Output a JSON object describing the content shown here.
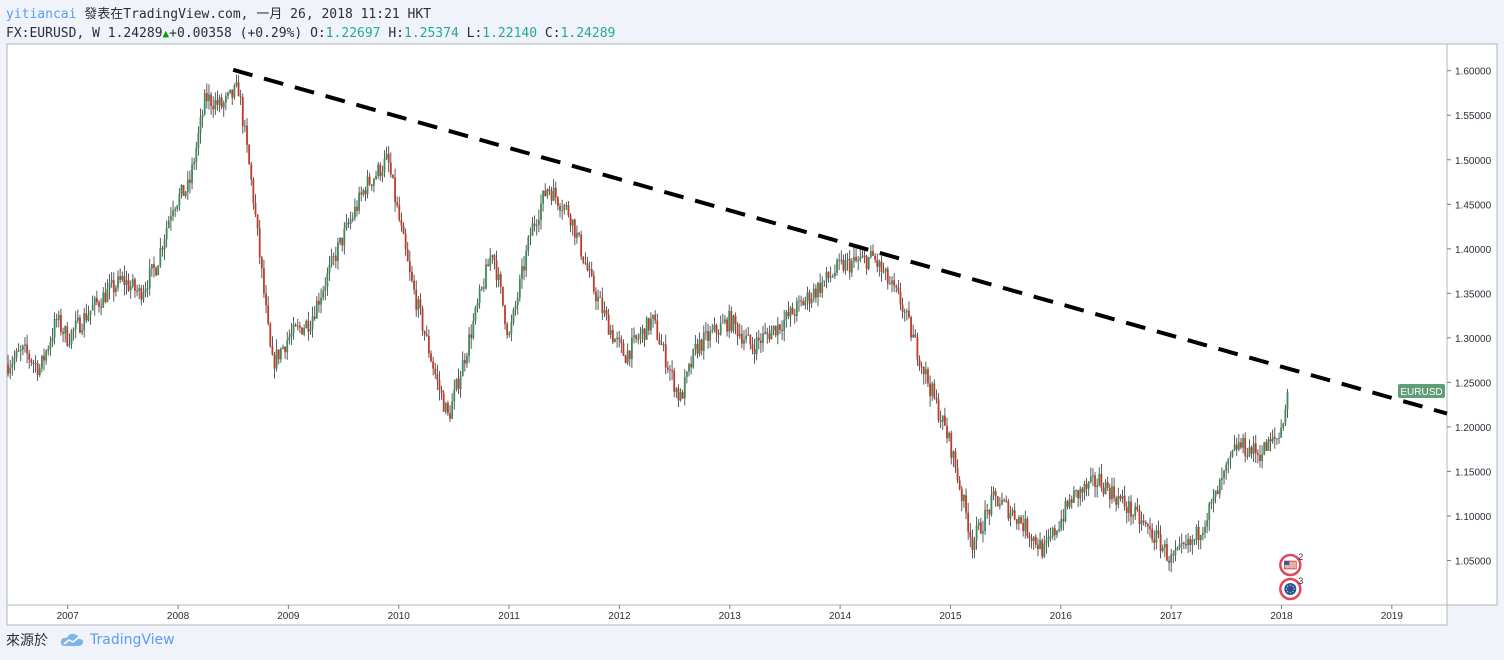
{
  "header": {
    "author": "yitiancai",
    "published": "發表在TradingView.com, 一月 26, 2018 11:21 HKT",
    "symbol": "FX:EURUSD, W",
    "last": "1.24289",
    "change": "+0.00358 (+0.29%)",
    "o_label": "O:",
    "o_value": "1.22697",
    "h_label": "H:",
    "h_value": "1.25374",
    "l_label": "L:",
    "l_value": "1.22140",
    "c_label": "C:",
    "c_value": "1.24289"
  },
  "footer": {
    "source_label": "來源於",
    "brand": "TradingView"
  },
  "colors": {
    "up": "#3d8a5a",
    "down": "#c0392b",
    "trend": "#000000",
    "badge": "#5f9e77"
  },
  "chart_data": {
    "type": "candlestick",
    "symbol_badge": "EURUSD",
    "x_range": [
      2006.45,
      2019.5
    ],
    "ylim": [
      1.0,
      1.63
    ],
    "y_ticks": [
      "1.60000",
      "1.55000",
      "1.50000",
      "1.45000",
      "1.40000",
      "1.35000",
      "1.30000",
      "1.25000",
      "1.20000",
      "1.15000",
      "1.10000",
      "1.05000"
    ],
    "x_ticks": [
      "2007",
      "2008",
      "2009",
      "2010",
      "2011",
      "2012",
      "2013",
      "2014",
      "2015",
      "2016",
      "2017",
      "2018",
      "2019"
    ],
    "price_path": [
      [
        2006.45,
        1.27
      ],
      [
        2006.6,
        1.285
      ],
      [
        2006.75,
        1.265
      ],
      [
        2006.9,
        1.32
      ],
      [
        2007.0,
        1.3
      ],
      [
        2007.2,
        1.33
      ],
      [
        2007.35,
        1.35
      ],
      [
        2007.5,
        1.365
      ],
      [
        2007.65,
        1.35
      ],
      [
        2007.8,
        1.38
      ],
      [
        2007.95,
        1.45
      ],
      [
        2008.1,
        1.47
      ],
      [
        2008.25,
        1.57
      ],
      [
        2008.4,
        1.56
      ],
      [
        2008.55,
        1.58
      ],
      [
        2008.68,
        1.46
      ],
      [
        2008.85,
        1.27
      ],
      [
        2009.0,
        1.3
      ],
      [
        2009.2,
        1.32
      ],
      [
        2009.45,
        1.4
      ],
      [
        2009.7,
        1.47
      ],
      [
        2009.9,
        1.5
      ],
      [
        2010.1,
        1.37
      ],
      [
        2010.35,
        1.25
      ],
      [
        2010.45,
        1.21
      ],
      [
        2010.6,
        1.28
      ],
      [
        2010.85,
        1.4
      ],
      [
        2011.0,
        1.3
      ],
      [
        2011.2,
        1.42
      ],
      [
        2011.35,
        1.47
      ],
      [
        2011.55,
        1.44
      ],
      [
        2011.75,
        1.36
      ],
      [
        2011.95,
        1.3
      ],
      [
        2012.05,
        1.28
      ],
      [
        2012.3,
        1.32
      ],
      [
        2012.55,
        1.23
      ],
      [
        2012.7,
        1.29
      ],
      [
        2013.0,
        1.32
      ],
      [
        2013.2,
        1.29
      ],
      [
        2013.5,
        1.32
      ],
      [
        2013.75,
        1.35
      ],
      [
        2014.0,
        1.38
      ],
      [
        2014.3,
        1.39
      ],
      [
        2014.55,
        1.34
      ],
      [
        2014.8,
        1.25
      ],
      [
        2015.0,
        1.18
      ],
      [
        2015.2,
        1.07
      ],
      [
        2015.4,
        1.12
      ],
      [
        2015.6,
        1.1
      ],
      [
        2015.85,
        1.06
      ],
      [
        2016.1,
        1.12
      ],
      [
        2016.35,
        1.14
      ],
      [
        2016.6,
        1.11
      ],
      [
        2016.9,
        1.07
      ],
      [
        2017.0,
        1.05
      ],
      [
        2017.2,
        1.07
      ],
      [
        2017.4,
        1.12
      ],
      [
        2017.6,
        1.18
      ],
      [
        2017.8,
        1.17
      ],
      [
        2017.98,
        1.19
      ],
      [
        2018.07,
        1.243
      ]
    ],
    "trendline": {
      "start": [
        2008.5,
        1.601
      ],
      "end": [
        2019.5,
        1.215
      ],
      "style": "dashed"
    },
    "events": [
      {
        "flag": "us",
        "count": "2"
      },
      {
        "flag": "eu",
        "count": "3"
      }
    ]
  }
}
